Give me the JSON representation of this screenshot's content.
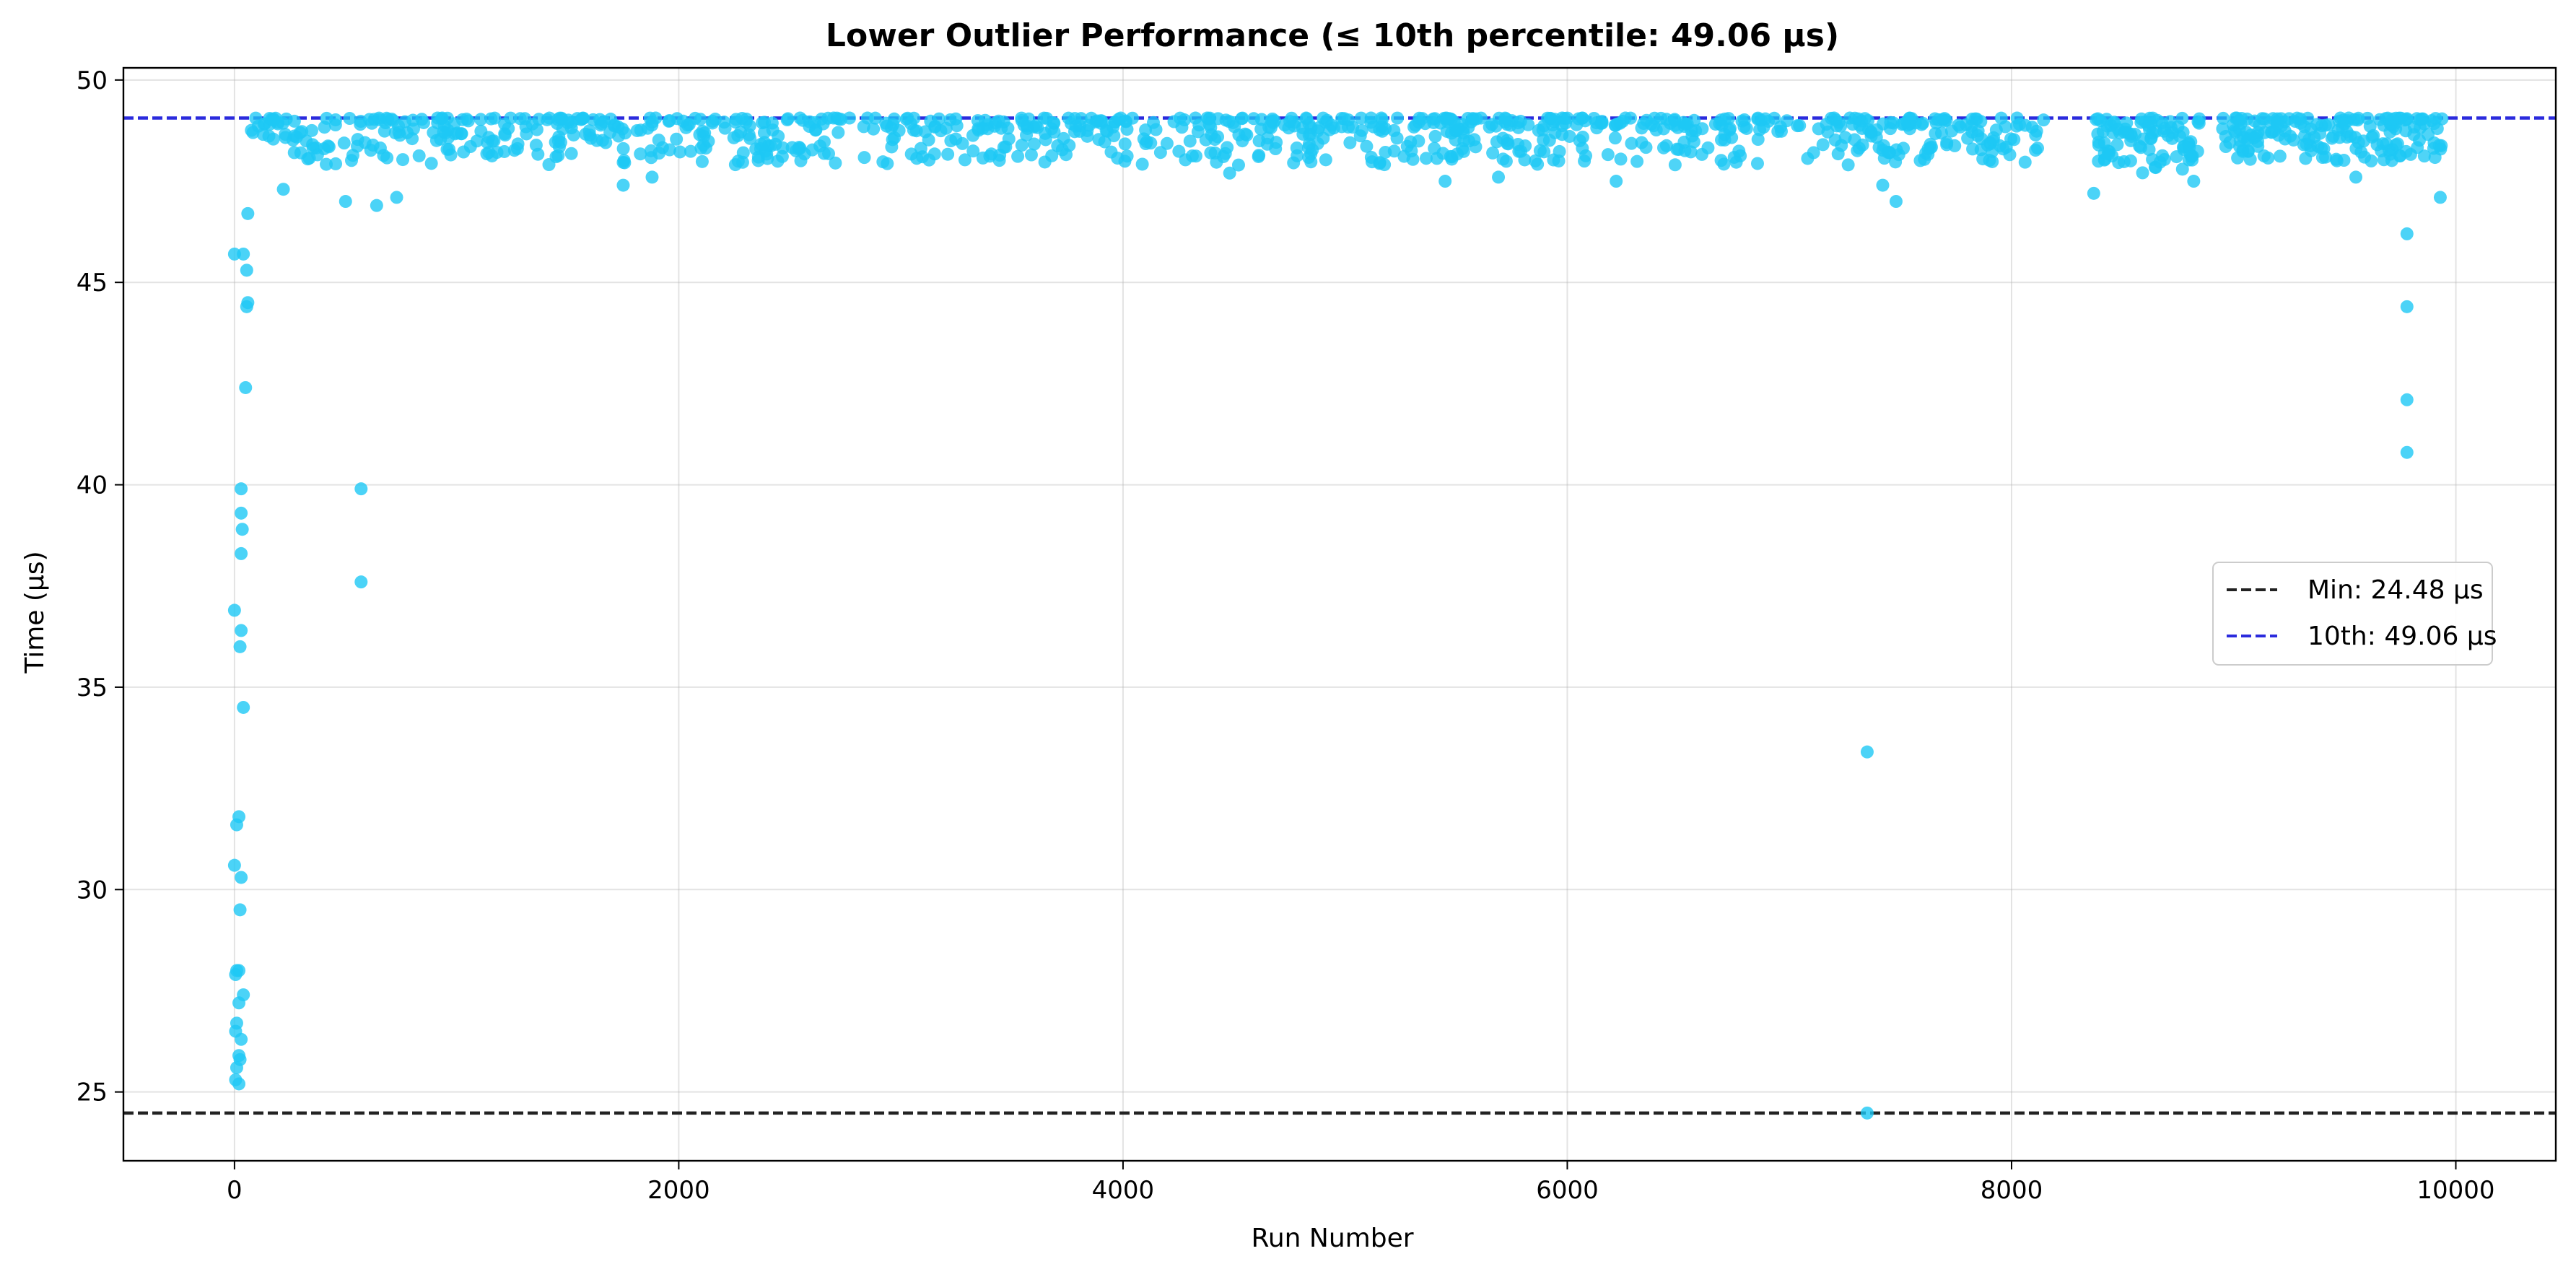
{
  "chart_data": {
    "type": "scatter",
    "title": "Lower Outlier Performance (≤ 10th percentile: 49.06 µs)",
    "xlabel": "Run Number",
    "ylabel": "Time (µs)",
    "xlim": [
      -500,
      10450
    ],
    "ylim": [
      23.3,
      50.3
    ],
    "xticks": [
      0,
      2000,
      4000,
      6000,
      8000,
      10000
    ],
    "yticks": [
      25,
      30,
      35,
      40,
      45,
      50
    ],
    "grid": true,
    "legend_position": "center-right",
    "point_color": "#1ec8f5",
    "reference_lines": [
      {
        "name": "Min: 24.48 µs",
        "value": 24.48,
        "color": "#222222",
        "style": "dashed"
      },
      {
        "name": "10th: 49.06 µs",
        "value": 49.06,
        "color": "#2b2bdd",
        "style": "dashed"
      }
    ],
    "outlier_points": [
      [
        0,
        45.7
      ],
      [
        40,
        45.7
      ],
      [
        55,
        45.3
      ],
      [
        60,
        44.5
      ],
      [
        55,
        44.4
      ],
      [
        60,
        46.7
      ],
      [
        50,
        42.4
      ],
      [
        30,
        39.9
      ],
      [
        30,
        39.3
      ],
      [
        35,
        38.9
      ],
      [
        30,
        38.3
      ],
      [
        0,
        36.9
      ],
      [
        30,
        36.4
      ],
      [
        25,
        36.0
      ],
      [
        40,
        34.5
      ],
      [
        10,
        31.6
      ],
      [
        20,
        31.8
      ],
      [
        0,
        30.6
      ],
      [
        30,
        30.3
      ],
      [
        25,
        29.5
      ],
      [
        10,
        28.0
      ],
      [
        20,
        28.0
      ],
      [
        5,
        27.9
      ],
      [
        40,
        27.4
      ],
      [
        20,
        27.2
      ],
      [
        10,
        26.7
      ],
      [
        5,
        26.5
      ],
      [
        30,
        26.3
      ],
      [
        20,
        25.9
      ],
      [
        10,
        25.6
      ],
      [
        5,
        25.3
      ],
      [
        20,
        25.2
      ],
      [
        25,
        25.8
      ],
      [
        570,
        39.9
      ],
      [
        570,
        37.6
      ],
      [
        7350,
        33.4
      ],
      [
        7350,
        24.48
      ],
      [
        9780,
        46.2
      ],
      [
        9780,
        44.4
      ],
      [
        9780,
        42.1
      ],
      [
        9780,
        40.8
      ],
      [
        9930,
        47.1
      ],
      [
        8370,
        47.2
      ],
      [
        8820,
        47.5
      ],
      [
        7480,
        47.0
      ],
      [
        220,
        47.3
      ],
      [
        500,
        47.0
      ],
      [
        640,
        46.9
      ],
      [
        730,
        47.1
      ],
      [
        1750,
        47.4
      ],
      [
        1880,
        47.6
      ],
      [
        5450,
        47.5
      ],
      [
        5690,
        47.6
      ],
      [
        6220,
        47.5
      ],
      [
        4480,
        47.7
      ],
      [
        7420,
        47.4
      ],
      [
        9550,
        47.6
      ],
      [
        4520,
        47.9
      ]
    ],
    "dense_clusters": [
      {
        "x_range": [
          60,
          8150
        ],
        "y_range": [
          47.9,
          49.06
        ],
        "density": 900
      },
      {
        "x_range": [
          8380,
          8850
        ],
        "y_range": [
          47.7,
          49.06
        ],
        "density": 90
      },
      {
        "x_range": [
          8950,
          9950
        ],
        "y_range": [
          48.0,
          49.06
        ],
        "density": 170
      }
    ]
  }
}
